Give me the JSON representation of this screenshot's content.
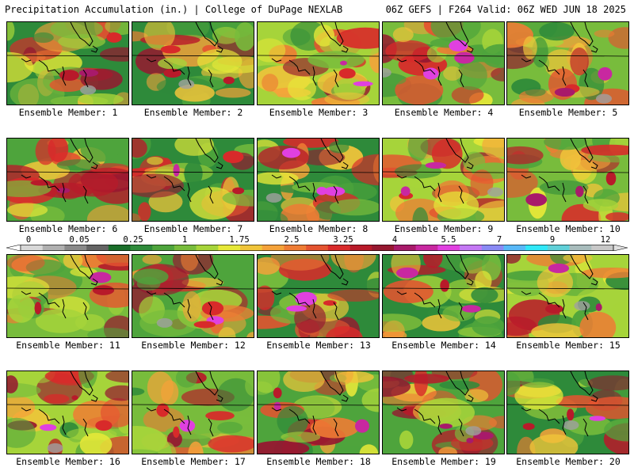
{
  "header": {
    "title": "Precipitation Accumulation (in.) | College of DuPage NEXLAB",
    "valid": "06Z GEFS | F264 Valid: 06Z WED JUN 18 2025"
  },
  "members": [
    {
      "label": "Ensemble Member: 1"
    },
    {
      "label": "Ensemble Member: 2"
    },
    {
      "label": "Ensemble Member: 3"
    },
    {
      "label": "Ensemble Member: 4"
    },
    {
      "label": "Ensemble Member: 5"
    },
    {
      "label": "Ensemble Member: 6"
    },
    {
      "label": "Ensemble Member: 7"
    },
    {
      "label": "Ensemble Member: 8"
    },
    {
      "label": "Ensemble Member: 9"
    },
    {
      "label": "Ensemble Member: 10"
    },
    {
      "label": "Ensemble Member: 11"
    },
    {
      "label": "Ensemble Member: 12"
    },
    {
      "label": "Ensemble Member: 13"
    },
    {
      "label": "Ensemble Member: 14"
    },
    {
      "label": "Ensemble Member: 15"
    },
    {
      "label": "Ensemble Member: 16"
    },
    {
      "label": "Ensemble Member: 17"
    },
    {
      "label": "Ensemble Member: 18"
    },
    {
      "label": "Ensemble Member: 19"
    },
    {
      "label": "Ensemble Member: 20"
    }
  ],
  "colorbar": {
    "tick_labels": [
      "0",
      "0.05",
      "0.25",
      "1",
      "1.75",
      "2.5",
      "3.25",
      "4",
      "5.5",
      "7",
      "9",
      "12"
    ],
    "colors": [
      "#ffffff",
      "#d8d8d8",
      "#b0b0b0",
      "#8a8a8a",
      "#646464",
      "#1a6e2a",
      "#2e8a3a",
      "#4ea43c",
      "#78bc3c",
      "#a6d43a",
      "#e6e838",
      "#f0c43a",
      "#f4a23a",
      "#ee7c34",
      "#e45430",
      "#d82a2a",
      "#b81a2a",
      "#961830",
      "#a81a6a",
      "#c828a0",
      "#e040e0",
      "#c478f4",
      "#8a8af4",
      "#58b8f8",
      "#30e8f8",
      "#60d0d8",
      "#a8bcbc",
      "#c8c8c8",
      "#e0e0e0"
    ]
  }
}
